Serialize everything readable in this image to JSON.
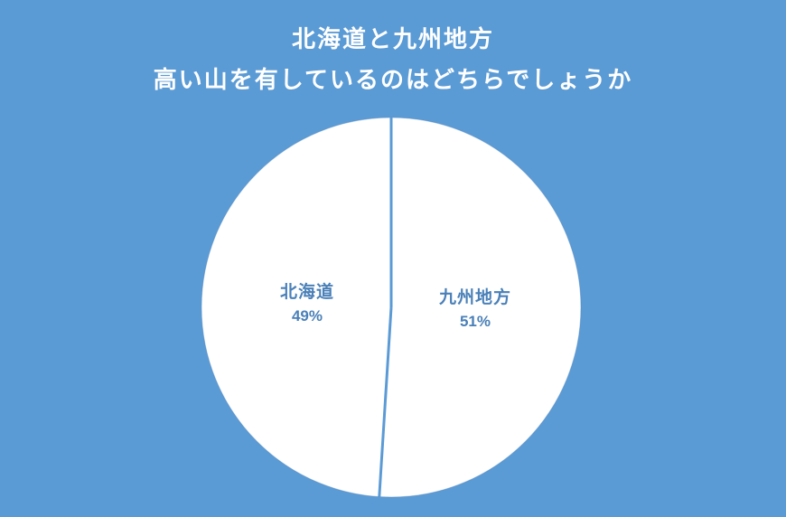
{
  "title": {
    "line1": "北海道と九州地方",
    "line2": "高い山を有しているのはどちらでしょうか"
  },
  "colors": {
    "background": "#5b9bd5",
    "title_text": "#ffffff",
    "pie_fill": "#ffffff",
    "divider": "#5b9bd5",
    "pie_edge": "#4d86bd",
    "label_text": "#4a80b8"
  },
  "chart_data": {
    "type": "pie",
    "title": "北海道と九州地方 高い山を有しているのはどちらでしょうか",
    "slices": [
      {
        "label": "北海道",
        "value": 49,
        "pct_label": "49%"
      },
      {
        "label": "九州地方",
        "value": 51,
        "pct_label": "51%"
      }
    ],
    "start_angle": "12-oclock",
    "direction": "counterclockwise",
    "slice_fill": "#ffffff",
    "label_position": "inside",
    "legend": "none"
  }
}
